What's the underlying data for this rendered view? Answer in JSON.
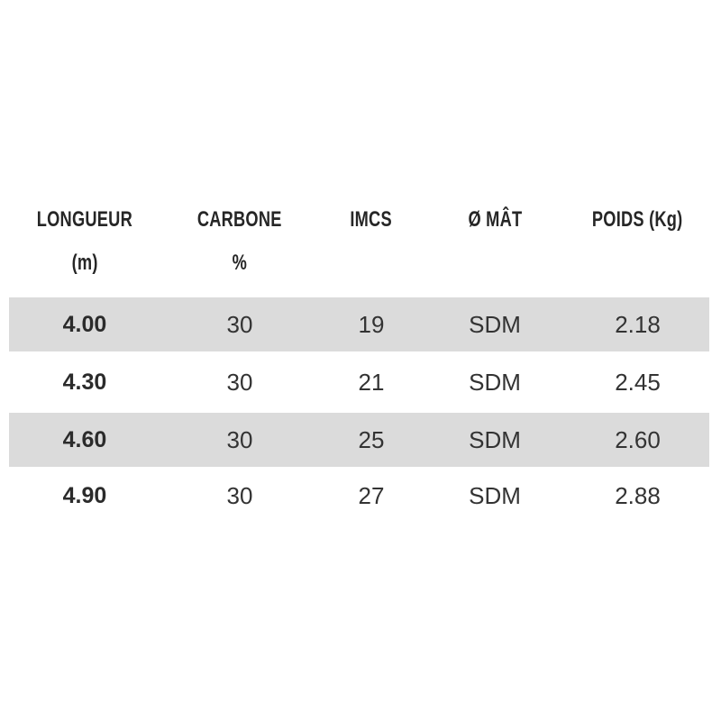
{
  "table": {
    "columns": [
      {
        "label": "LONGUEUR",
        "sublabel": "(m)"
      },
      {
        "label": "CARBONE",
        "sublabel": "%"
      },
      {
        "label": "IMCS",
        "sublabel": ""
      },
      {
        "label": "Ø MÂT",
        "sublabel": ""
      },
      {
        "label": "POIDS (Kg)",
        "sublabel": ""
      }
    ],
    "rows": [
      {
        "longueur": "4.00",
        "carbone": "30",
        "imcs": "19",
        "mat": "SDM",
        "poids": "2.18"
      },
      {
        "longueur": "4.30",
        "carbone": "30",
        "imcs": "21",
        "mat": "SDM",
        "poids": "2.45"
      },
      {
        "longueur": "4.60",
        "carbone": "30",
        "imcs": "25",
        "mat": "SDM",
        "poids": "2.60"
      },
      {
        "longueur": "4.90",
        "carbone": "30",
        "imcs": "27",
        "mat": "SDM",
        "poids": "2.88"
      }
    ],
    "striped_row_indexes": [
      0,
      2
    ]
  },
  "colors": {
    "row_stripe": "#dbdbdb",
    "header_text": "#262626",
    "body_text": "#333333",
    "background": "#ffffff"
  }
}
